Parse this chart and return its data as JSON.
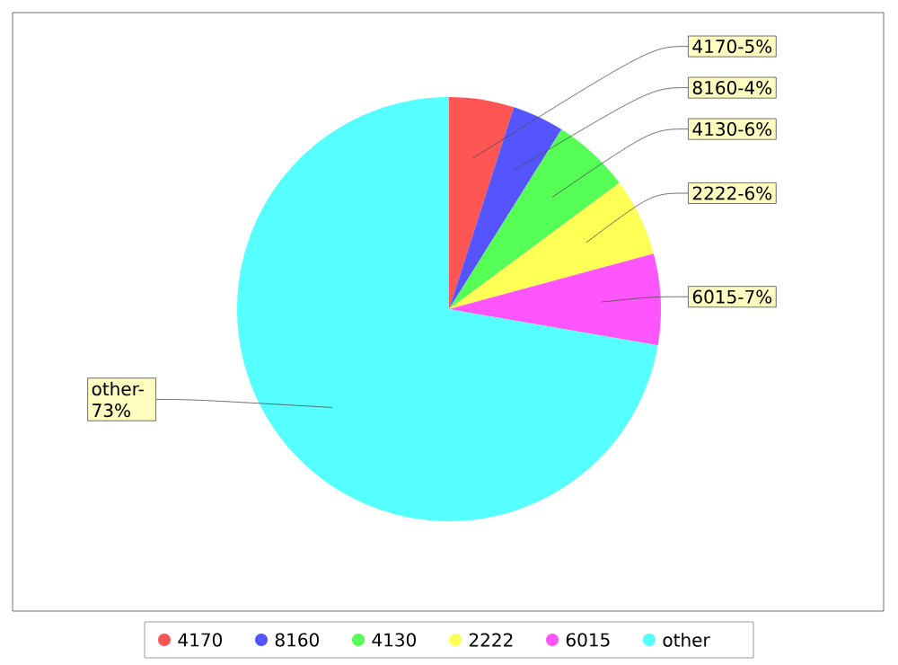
{
  "chart_data": {
    "type": "pie",
    "categories": [
      "4170",
      "8160",
      "4130",
      "2222",
      "6015",
      "other"
    ],
    "values": [
      5,
      4,
      6,
      6,
      7,
      73
    ],
    "colors": [
      "#ff5555",
      "#5555ff",
      "#55ff55",
      "#ffff55",
      "#ff55ff",
      "#55ffff"
    ],
    "annotations": [
      "4170-5%",
      "8160-4%",
      "4130-6%",
      "2222-6%",
      "6015-7%",
      "other-73%"
    ],
    "legend": "bottom"
  }
}
